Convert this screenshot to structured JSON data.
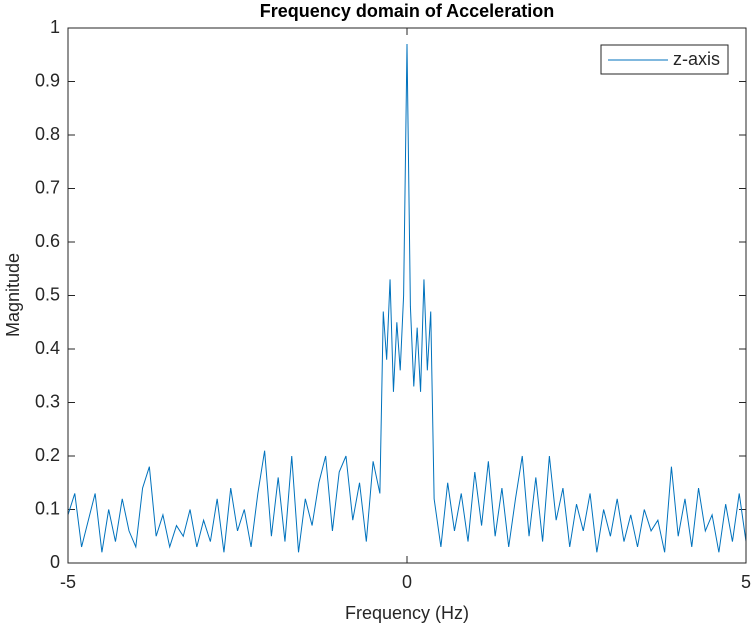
{
  "chart_data": {
    "type": "line",
    "title": "Frequency domain of Acceleration",
    "xlabel": "Frequency (Hz)",
    "ylabel": "Magnitude",
    "x": [
      -5.0,
      -4.9,
      -4.8,
      -4.7,
      -4.6,
      -4.5,
      -4.4,
      -4.3,
      -4.2,
      -4.1,
      -4.0,
      -3.9,
      -3.8,
      -3.7,
      -3.6,
      -3.5,
      -3.4,
      -3.3,
      -3.2,
      -3.1,
      -3.0,
      -2.9,
      -2.8,
      -2.7,
      -2.6,
      -2.5,
      -2.4,
      -2.3,
      -2.2,
      -2.1,
      -2.0,
      -1.9,
      -1.8,
      -1.7,
      -1.6,
      -1.5,
      -1.4,
      -1.3,
      -1.2,
      -1.1,
      -1.0,
      -0.9,
      -0.8,
      -0.7,
      -0.6,
      -0.5,
      -0.4,
      -0.35,
      -0.3,
      -0.25,
      -0.2,
      -0.15,
      -0.1,
      -0.05,
      0,
      0.05,
      0.1,
      0.15,
      0.2,
      0.25,
      0.3,
      0.35,
      0.4,
      0.5,
      0.6,
      0.7,
      0.8,
      0.9,
      1.0,
      1.1,
      1.2,
      1.3,
      1.4,
      1.5,
      1.6,
      1.7,
      1.8,
      1.9,
      2.0,
      2.1,
      2.2,
      2.3,
      2.4,
      2.5,
      2.6,
      2.7,
      2.8,
      2.9,
      3.0,
      3.1,
      3.2,
      3.3,
      3.4,
      3.5,
      3.6,
      3.7,
      3.8,
      3.9,
      4.0,
      4.1,
      4.2,
      4.3,
      4.4,
      4.5,
      4.6,
      4.7,
      4.8,
      4.9,
      5.0
    ],
    "series": [
      {
        "name": "z-axis",
        "color": "#0072bd",
        "values": [
          0.09,
          0.13,
          0.03,
          0.08,
          0.13,
          0.02,
          0.1,
          0.04,
          0.12,
          0.06,
          0.03,
          0.14,
          0.18,
          0.05,
          0.09,
          0.03,
          0.07,
          0.05,
          0.1,
          0.03,
          0.08,
          0.04,
          0.12,
          0.02,
          0.14,
          0.06,
          0.1,
          0.03,
          0.13,
          0.21,
          0.05,
          0.16,
          0.04,
          0.2,
          0.02,
          0.12,
          0.07,
          0.15,
          0.2,
          0.06,
          0.17,
          0.2,
          0.08,
          0.15,
          0.04,
          0.19,
          0.13,
          0.47,
          0.38,
          0.53,
          0.32,
          0.45,
          0.36,
          0.5,
          0.97,
          0.48,
          0.33,
          0.44,
          0.32,
          0.53,
          0.36,
          0.47,
          0.12,
          0.03,
          0.15,
          0.06,
          0.13,
          0.04,
          0.17,
          0.07,
          0.19,
          0.05,
          0.14,
          0.03,
          0.12,
          0.2,
          0.05,
          0.16,
          0.04,
          0.2,
          0.08,
          0.14,
          0.03,
          0.11,
          0.06,
          0.13,
          0.02,
          0.1,
          0.05,
          0.12,
          0.04,
          0.09,
          0.03,
          0.1,
          0.06,
          0.08,
          0.02,
          0.18,
          0.05,
          0.12,
          0.03,
          0.14,
          0.06,
          0.09,
          0.02,
          0.11,
          0.04,
          0.13,
          0.04
        ]
      }
    ],
    "xlim": [
      -5,
      5
    ],
    "ylim": [
      0,
      1
    ],
    "xticks": [
      -5,
      0,
      5
    ],
    "yticks": [
      0,
      0.1,
      0.2,
      0.3,
      0.4,
      0.5,
      0.6,
      0.7,
      0.8,
      0.9,
      1
    ],
    "legend": "northeast"
  }
}
